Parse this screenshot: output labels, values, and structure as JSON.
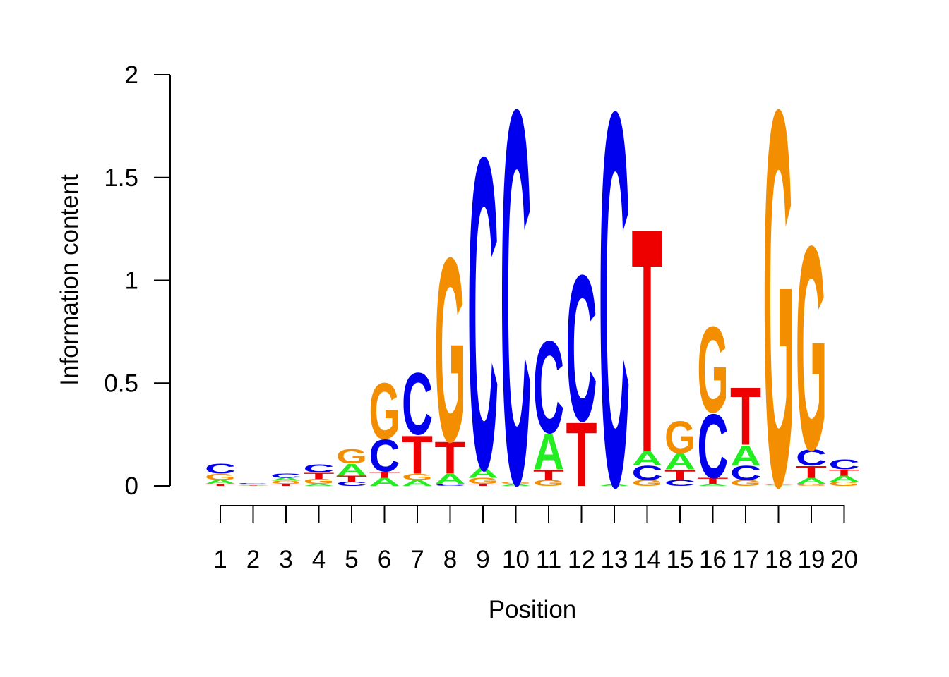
{
  "chart_data": {
    "type": "sequence-logo",
    "xlabel": "Position",
    "ylabel": "Information content",
    "ylim": [
      0,
      2
    ],
    "yticks": [
      "0",
      "0.5",
      "1",
      "1.5",
      "2"
    ],
    "colors": {
      "A": "#22ee22",
      "C": "#0000ee",
      "G": "#f28e00",
      "T": "#ee0000"
    },
    "positions": [
      {
        "label": "1",
        "stack": [
          {
            "letter": "T",
            "height": 0.01
          },
          {
            "letter": "A",
            "height": 0.02
          },
          {
            "letter": "G",
            "height": 0.03
          },
          {
            "letter": "C",
            "height": 0.05
          }
        ]
      },
      {
        "label": "2",
        "stack": [
          {
            "letter": "T",
            "height": 0.002
          },
          {
            "letter": "A",
            "height": 0.003
          },
          {
            "letter": "G",
            "height": 0.003
          },
          {
            "letter": "C",
            "height": 0.004
          }
        ]
      },
      {
        "label": "3",
        "stack": [
          {
            "letter": "T",
            "height": 0.01
          },
          {
            "letter": "G",
            "height": 0.015
          },
          {
            "letter": "A",
            "height": 0.015
          },
          {
            "letter": "C",
            "height": 0.02
          }
        ]
      },
      {
        "label": "4",
        "stack": [
          {
            "letter": "A",
            "height": 0.01
          },
          {
            "letter": "G",
            "height": 0.025
          },
          {
            "letter": "T",
            "height": 0.03
          },
          {
            "letter": "C",
            "height": 0.04
          }
        ]
      },
      {
        "label": "5",
        "stack": [
          {
            "letter": "C",
            "height": 0.02
          },
          {
            "letter": "T",
            "height": 0.03
          },
          {
            "letter": "A",
            "height": 0.06
          },
          {
            "letter": "G",
            "height": 0.07
          }
        ]
      },
      {
        "label": "6",
        "stack": [
          {
            "letter": "A",
            "height": 0.04
          },
          {
            "letter": "T",
            "height": 0.03
          },
          {
            "letter": "C",
            "height": 0.16
          },
          {
            "letter": "G",
            "height": 0.28
          }
        ]
      },
      {
        "label": "7",
        "stack": [
          {
            "letter": "A",
            "height": 0.03
          },
          {
            "letter": "G",
            "height": 0.03
          },
          {
            "letter": "T",
            "height": 0.19
          },
          {
            "letter": "C",
            "height": 0.31
          }
        ]
      },
      {
        "label": "8",
        "stack": [
          {
            "letter": "C",
            "height": 0.01
          },
          {
            "letter": "A",
            "height": 0.05
          },
          {
            "letter": "T",
            "height": 0.16
          },
          {
            "letter": "G",
            "height": 0.92
          }
        ]
      },
      {
        "label": "9",
        "stack": [
          {
            "letter": "T",
            "height": 0.01
          },
          {
            "letter": "G",
            "height": 0.03
          },
          {
            "letter": "A",
            "height": 0.05
          },
          {
            "letter": "C",
            "height": 1.56
          }
        ]
      },
      {
        "label": "10",
        "stack": [
          {
            "letter": "A",
            "height": 0.01
          },
          {
            "letter": "G",
            "height": 0.01
          },
          {
            "letter": "C",
            "height": 1.87
          }
        ]
      },
      {
        "label": "11",
        "stack": [
          {
            "letter": "G",
            "height": 0.03
          },
          {
            "letter": "T",
            "height": 0.05
          },
          {
            "letter": "A",
            "height": 0.18
          },
          {
            "letter": "C",
            "height": 0.46
          }
        ]
      },
      {
        "label": "12",
        "stack": [
          {
            "letter": "T",
            "height": 0.32
          },
          {
            "letter": "C",
            "height": 0.73
          }
        ]
      },
      {
        "label": "13",
        "stack": [
          {
            "letter": "A",
            "height": 0.01
          },
          {
            "letter": "C",
            "height": 1.87
          }
        ]
      },
      {
        "label": "14",
        "stack": [
          {
            "letter": "G",
            "height": 0.03
          },
          {
            "letter": "C",
            "height": 0.07
          },
          {
            "letter": "A",
            "height": 0.07
          },
          {
            "letter": "T",
            "height": 1.12
          }
        ]
      },
      {
        "label": "15",
        "stack": [
          {
            "letter": "C",
            "height": 0.03
          },
          {
            "letter": "T",
            "height": 0.05
          },
          {
            "letter": "A",
            "height": 0.08
          },
          {
            "letter": "G",
            "height": 0.16
          }
        ]
      },
      {
        "label": "16",
        "stack": [
          {
            "letter": "A",
            "height": 0.01
          },
          {
            "letter": "T",
            "height": 0.03
          },
          {
            "letter": "C",
            "height": 0.32
          },
          {
            "letter": "G",
            "height": 0.43
          }
        ]
      },
      {
        "label": "17",
        "stack": [
          {
            "letter": "G",
            "height": 0.03
          },
          {
            "letter": "C",
            "height": 0.07
          },
          {
            "letter": "A",
            "height": 0.1
          },
          {
            "letter": "T",
            "height": 0.29
          }
        ]
      },
      {
        "label": "18",
        "stack": [
          {
            "letter": "A",
            "height": 0.003
          },
          {
            "letter": "C",
            "height": 0.003
          },
          {
            "letter": "T",
            "height": 0.004
          },
          {
            "letter": "G",
            "height": 1.88
          }
        ]
      },
      {
        "label": "19",
        "stack": [
          {
            "letter": "G",
            "height": 0.01
          },
          {
            "letter": "A",
            "height": 0.03
          },
          {
            "letter": "T",
            "height": 0.06
          },
          {
            "letter": "C",
            "height": 0.08
          },
          {
            "letter": "G",
            "height": 1.02
          }
        ]
      },
      {
        "label": "20",
        "stack": [
          {
            "letter": "G",
            "height": 0.02
          },
          {
            "letter": "A",
            "height": 0.03
          },
          {
            "letter": "T",
            "height": 0.03
          },
          {
            "letter": "C",
            "height": 0.05
          }
        ]
      }
    ]
  }
}
